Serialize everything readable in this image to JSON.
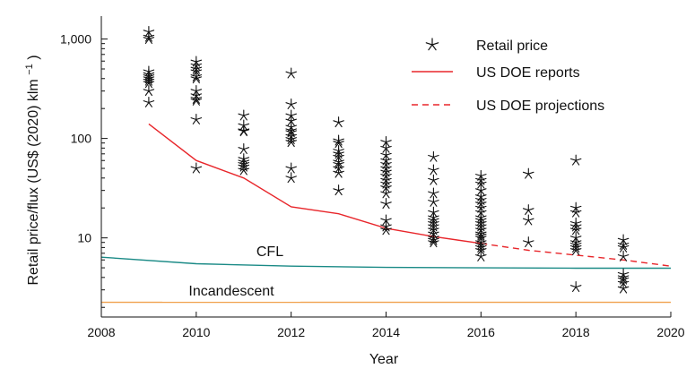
{
  "chart_data": {
    "type": "scatter",
    "title": "",
    "xlabel": "Year",
    "ylabel": "Retail price/flux (US$ (2020) klm",
    "ylabel_superscript": "−1",
    "ylabel_suffix": ")",
    "xlim": [
      2008,
      2020
    ],
    "ylim": [
      1.6,
      1700
    ],
    "yscale": "log",
    "x_ticks": [
      2008,
      2010,
      2012,
      2014,
      2016,
      2018,
      2020
    ],
    "x_tick_labels": [
      "2008",
      "2010",
      "2012",
      "2014",
      "2016",
      "2018",
      "2020"
    ],
    "y_ticks": [
      10,
      100,
      1000
    ],
    "y_tick_labels": [
      "10",
      "100",
      "1,000"
    ],
    "grid": false,
    "legend_position": "top-right",
    "legend": {
      "retail": "Retail price",
      "reports": "US DOE reports",
      "projections": "US DOE projections"
    },
    "annotations": {
      "cfl": "CFL",
      "incandescent": "Incandescent"
    },
    "colors": {
      "retail": "#111111",
      "doe": "#e8262b",
      "cfl": "#1a8a86",
      "incandescent": "#f0a04b",
      "axis": "#111111"
    },
    "series": [
      {
        "name": "Retail price",
        "kind": "scatter",
        "points": [
          [
            2009,
            1180
          ],
          [
            2009,
            1050
          ],
          [
            2009,
            1000
          ],
          [
            2009,
            470
          ],
          [
            2009,
            440
          ],
          [
            2009,
            420
          ],
          [
            2009,
            400
          ],
          [
            2009,
            380
          ],
          [
            2009,
            360
          ],
          [
            2009,
            300
          ],
          [
            2009,
            230
          ],
          [
            2010,
            590
          ],
          [
            2010,
            540
          ],
          [
            2010,
            500
          ],
          [
            2010,
            470
          ],
          [
            2010,
            420
          ],
          [
            2010,
            400
          ],
          [
            2010,
            300
          ],
          [
            2010,
            270
          ],
          [
            2010,
            250
          ],
          [
            2010,
            240
          ],
          [
            2010,
            155
          ],
          [
            2010,
            50
          ],
          [
            2011,
            170
          ],
          [
            2011,
            135
          ],
          [
            2011,
            120
          ],
          [
            2011,
            118
          ],
          [
            2011,
            78
          ],
          [
            2011,
            62
          ],
          [
            2011,
            58
          ],
          [
            2011,
            55
          ],
          [
            2011,
            52
          ],
          [
            2011,
            48
          ],
          [
            2012,
            450
          ],
          [
            2012,
            220
          ],
          [
            2012,
            170
          ],
          [
            2012,
            150
          ],
          [
            2012,
            130
          ],
          [
            2012,
            120
          ],
          [
            2012,
            115
          ],
          [
            2012,
            105
          ],
          [
            2012,
            98
          ],
          [
            2012,
            92
          ],
          [
            2012,
            50
          ],
          [
            2012,
            40
          ],
          [
            2013,
            145
          ],
          [
            2013,
            95
          ],
          [
            2013,
            90
          ],
          [
            2013,
            75
          ],
          [
            2013,
            70
          ],
          [
            2013,
            65
          ],
          [
            2013,
            58
          ],
          [
            2013,
            55
          ],
          [
            2013,
            50
          ],
          [
            2013,
            45
          ],
          [
            2013,
            30
          ],
          [
            2014,
            92
          ],
          [
            2014,
            80
          ],
          [
            2014,
            68
          ],
          [
            2014,
            60
          ],
          [
            2014,
            55
          ],
          [
            2014,
            50
          ],
          [
            2014,
            46
          ],
          [
            2014,
            42
          ],
          [
            2014,
            38
          ],
          [
            2014,
            35
          ],
          [
            2014,
            32
          ],
          [
            2014,
            28
          ],
          [
            2014,
            22
          ],
          [
            2014,
            15
          ],
          [
            2014,
            13
          ],
          [
            2014,
            12
          ],
          [
            2015,
            65
          ],
          [
            2015,
            48
          ],
          [
            2015,
            38
          ],
          [
            2015,
            28
          ],
          [
            2015,
            23
          ],
          [
            2015,
            18
          ],
          [
            2015,
            16
          ],
          [
            2015,
            15
          ],
          [
            2015,
            14
          ],
          [
            2015,
            13
          ],
          [
            2015,
            12
          ],
          [
            2015,
            11
          ],
          [
            2015,
            10
          ],
          [
            2015,
            9.5
          ],
          [
            2015,
            9
          ],
          [
            2016,
            42
          ],
          [
            2016,
            38
          ],
          [
            2016,
            35
          ],
          [
            2016,
            30
          ],
          [
            2016,
            26
          ],
          [
            2016,
            24
          ],
          [
            2016,
            22
          ],
          [
            2016,
            20
          ],
          [
            2016,
            18
          ],
          [
            2016,
            16
          ],
          [
            2016,
            15
          ],
          [
            2016,
            14
          ],
          [
            2016,
            13
          ],
          [
            2016,
            12
          ],
          [
            2016,
            11
          ],
          [
            2016,
            10.5
          ],
          [
            2016,
            10
          ],
          [
            2016,
            9
          ],
          [
            2016,
            8.5
          ],
          [
            2016,
            8
          ],
          [
            2016,
            7.5
          ],
          [
            2016,
            6.5
          ],
          [
            2017,
            44
          ],
          [
            2017,
            19
          ],
          [
            2017,
            15
          ],
          [
            2017,
            9
          ],
          [
            2018,
            60
          ],
          [
            2018,
            20
          ],
          [
            2018,
            18
          ],
          [
            2018,
            14
          ],
          [
            2018,
            13
          ],
          [
            2018,
            12
          ],
          [
            2018,
            10
          ],
          [
            2018,
            9
          ],
          [
            2018,
            8.5
          ],
          [
            2018,
            8
          ],
          [
            2018,
            7.5
          ],
          [
            2018,
            3.2
          ],
          [
            2019,
            9.5
          ],
          [
            2019,
            8.5
          ],
          [
            2019,
            8
          ],
          [
            2019,
            6.5
          ],
          [
            2019,
            4.3
          ],
          [
            2019,
            4
          ],
          [
            2019,
            3.8
          ],
          [
            2019,
            3.5
          ],
          [
            2019,
            3.1
          ]
        ]
      },
      {
        "name": "US DOE reports",
        "kind": "line",
        "points": [
          [
            2009,
            140
          ],
          [
            2010,
            60
          ],
          [
            2011,
            40
          ],
          [
            2012,
            20.5
          ],
          [
            2013,
            17.5
          ],
          [
            2014,
            12.5
          ],
          [
            2015,
            10.3
          ],
          [
            2016,
            8.8
          ]
        ]
      },
      {
        "name": "US DOE projections",
        "kind": "dashed-line",
        "points": [
          [
            2016,
            8.8
          ],
          [
            2017,
            7.5
          ],
          [
            2018,
            6.7
          ],
          [
            2019,
            6.0
          ],
          [
            2020,
            5.2
          ]
        ]
      },
      {
        "name": "CFL",
        "kind": "line",
        "points": [
          [
            2008,
            6.4
          ],
          [
            2010,
            5.5
          ],
          [
            2012,
            5.2
          ],
          [
            2014,
            5.05
          ],
          [
            2016,
            5.0
          ],
          [
            2018,
            4.95
          ],
          [
            2020,
            4.95
          ]
        ]
      },
      {
        "name": "Incandescent",
        "kind": "line",
        "points": [
          [
            2008,
            2.25
          ],
          [
            2020,
            2.25
          ]
        ]
      }
    ]
  }
}
